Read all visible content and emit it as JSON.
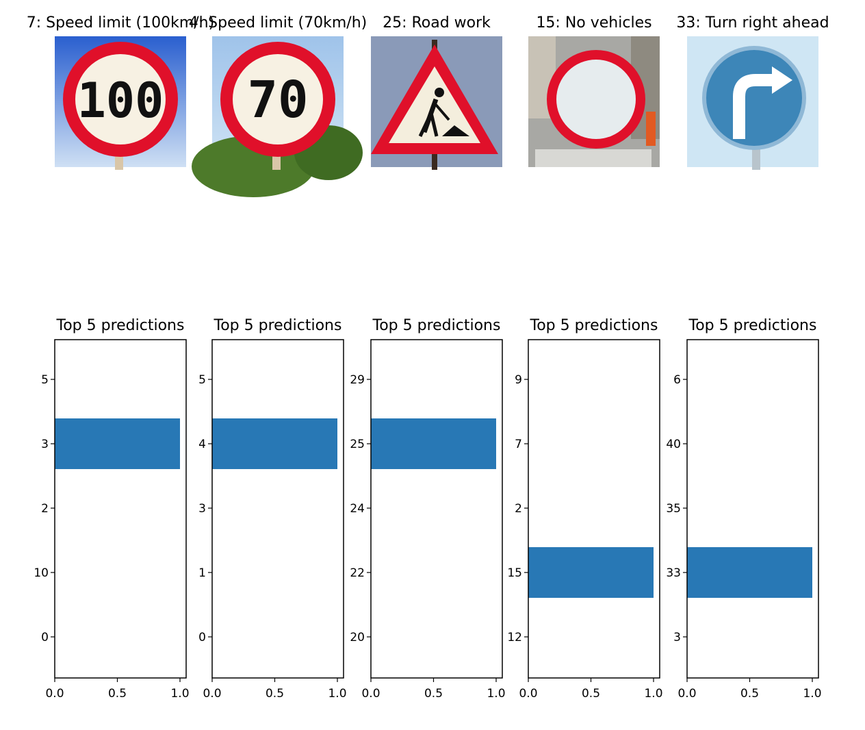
{
  "colors": {
    "bar": "#2878b5",
    "axes": "#000000",
    "background": "#ffffff"
  },
  "signs": [
    {
      "title": "7: Speed limit (100km/h)",
      "icon": "speed-limit-100-sign",
      "sign_text": "100"
    },
    {
      "title": "4: Speed limit (70km/h)",
      "icon": "speed-limit-70-sign",
      "sign_text": "70"
    },
    {
      "title": "25: Road work",
      "icon": "road-work-sign",
      "sign_text": ""
    },
    {
      "title": "15: No vehicles",
      "icon": "no-vehicles-sign",
      "sign_text": ""
    },
    {
      "title": "33: Turn right ahead",
      "icon": "turn-right-ahead-sign",
      "sign_text": ""
    }
  ],
  "chart_data": [
    {
      "type": "bar",
      "orientation": "horizontal",
      "title": "Top 5 predictions",
      "categories": [
        "0",
        "10",
        "2",
        "3",
        "5"
      ],
      "values": [
        0,
        0,
        0,
        1.0,
        0
      ],
      "xlim": [
        0,
        1.0
      ],
      "xticks": [
        "0.0",
        "0.5",
        "1.0"
      ],
      "grid": false
    },
    {
      "type": "bar",
      "orientation": "horizontal",
      "title": "Top 5 predictions",
      "categories": [
        "0",
        "1",
        "3",
        "4",
        "5"
      ],
      "values": [
        0,
        0,
        0,
        1.0,
        0
      ],
      "xlim": [
        0,
        1.0
      ],
      "xticks": [
        "0.0",
        "0.5",
        "1.0"
      ],
      "grid": false
    },
    {
      "type": "bar",
      "orientation": "horizontal",
      "title": "Top 5 predictions",
      "categories": [
        "20",
        "22",
        "24",
        "25",
        "29"
      ],
      "values": [
        0,
        0,
        0,
        1.0,
        0
      ],
      "xlim": [
        0,
        1.0
      ],
      "xticks": [
        "0.0",
        "0.5",
        "1.0"
      ],
      "grid": false
    },
    {
      "type": "bar",
      "orientation": "horizontal",
      "title": "Top 5 predictions",
      "categories": [
        "12",
        "15",
        "2",
        "7",
        "9"
      ],
      "values": [
        0,
        1.0,
        0,
        0,
        0
      ],
      "xlim": [
        0,
        1.0
      ],
      "xticks": [
        "0.0",
        "0.5",
        "1.0"
      ],
      "grid": false
    },
    {
      "type": "bar",
      "orientation": "horizontal",
      "title": "Top 5 predictions",
      "categories": [
        "3",
        "33",
        "35",
        "40",
        "6"
      ],
      "values": [
        0,
        1.0,
        0,
        0,
        0
      ],
      "xlim": [
        0,
        1.0
      ],
      "xticks": [
        "0.0",
        "0.5",
        "1.0"
      ],
      "grid": false
    }
  ]
}
